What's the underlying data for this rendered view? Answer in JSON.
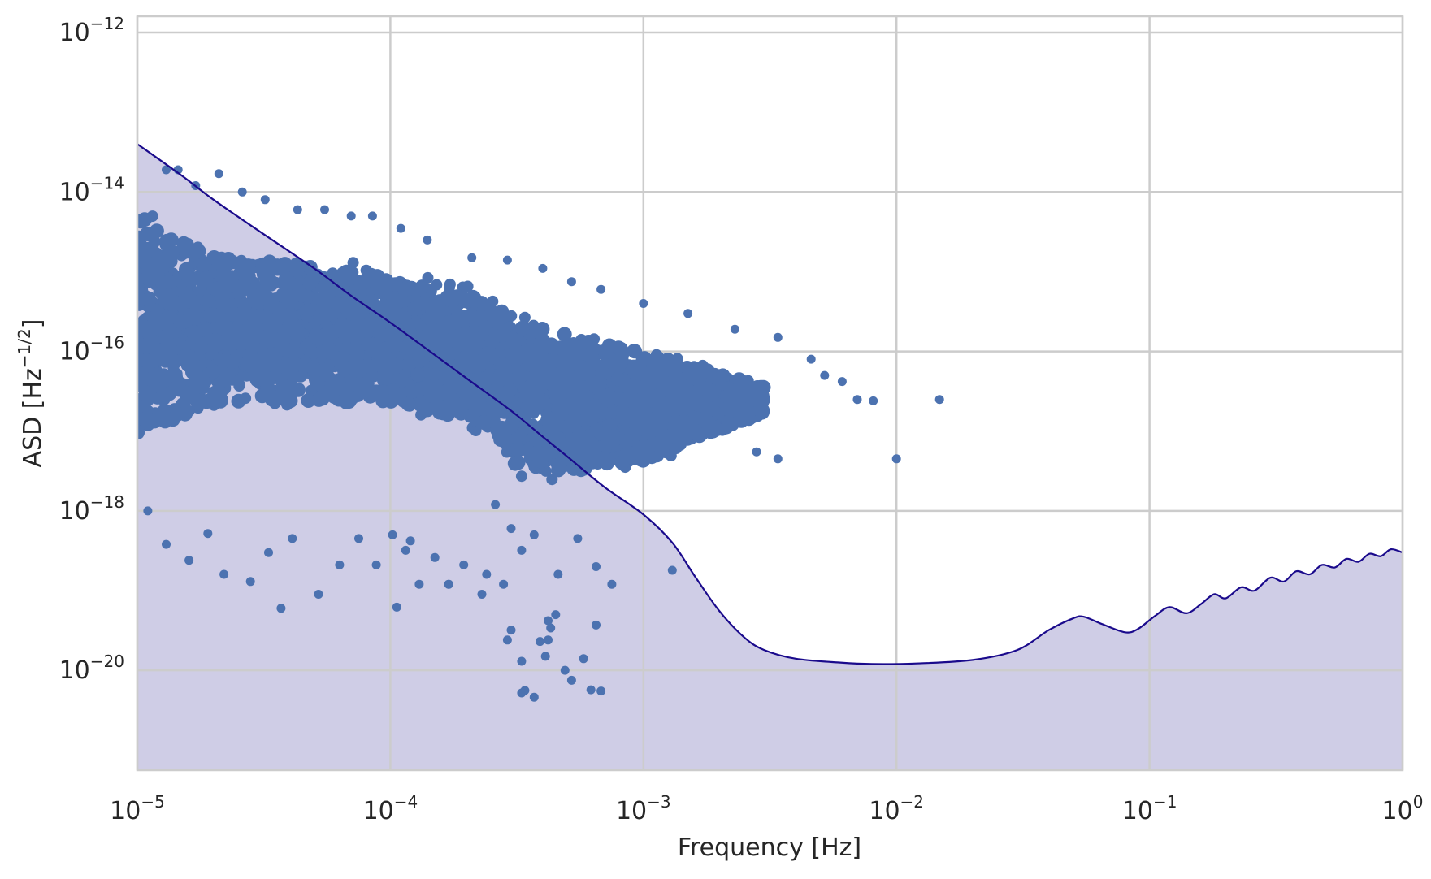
{
  "chart_data": {
    "type": "scatter",
    "title": "",
    "xlabel": "Frequency [Hz]",
    "ylabel": "ASD [Hz−1/2]",
    "ylabel_parts": {
      "prefix": "ASD [Hz",
      "exponent": "−1/2",
      "suffix": "]"
    },
    "xscale": "log",
    "yscale": "log",
    "xlim": [
      1e-05,
      1
    ],
    "ylim": [
      5.6e-22,
      1.6e-12
    ],
    "grid": true,
    "legend": "none",
    "x_ticks": [
      {
        "base": "10",
        "exp": "−5"
      },
      {
        "base": "10",
        "exp": "−4"
      },
      {
        "base": "10",
        "exp": "−3"
      },
      {
        "base": "10",
        "exp": "−2"
      },
      {
        "base": "10",
        "exp": "−1"
      },
      {
        "base": "10",
        "exp": "0"
      }
    ],
    "x_tick_values": [
      1e-05,
      0.0001,
      0.001,
      0.01,
      0.1,
      1
    ],
    "y_ticks": [
      {
        "base": "10",
        "exp": "−20"
      },
      {
        "base": "10",
        "exp": "−18"
      },
      {
        "base": "10",
        "exp": "−16"
      },
      {
        "base": "10",
        "exp": "−14"
      },
      {
        "base": "10",
        "exp": "−12"
      }
    ],
    "y_tick_values": [
      1e-20,
      1e-18,
      1e-16,
      1e-14,
      1e-12
    ],
    "colors": {
      "scatter": "#4c72b0",
      "curve": "#1a0a8c",
      "fill": "#cfcde6"
    },
    "series": [
      {
        "type": "line",
        "fill_below": true,
        "points": [
          [
            1e-05,
            4e-14
          ],
          [
            1.5e-05,
            1.6e-14
          ],
          [
            2e-05,
            8e-15
          ],
          [
            3e-05,
            3.3e-15
          ],
          [
            5e-05,
            1.1e-15
          ],
          [
            7e-05,
            5e-16
          ],
          [
            0.0001,
            2.3e-16
          ],
          [
            0.00015,
            9e-17
          ],
          [
            0.0002,
            4.6e-17
          ],
          [
            0.0003,
            1.8e-17
          ],
          [
            0.0004,
            8.5e-18
          ],
          [
            0.0005,
            4.8e-18
          ],
          [
            0.0007,
            2e-18
          ],
          [
            0.001,
            9e-19
          ],
          [
            0.0013,
            4e-19
          ],
          [
            0.0016,
            1.5e-19
          ],
          [
            0.002,
            5.5e-20
          ],
          [
            0.0025,
            2.6e-20
          ],
          [
            0.003,
            1.8e-20
          ],
          [
            0.004,
            1.4e-20
          ],
          [
            0.006,
            1.25e-20
          ],
          [
            0.008,
            1.2e-20
          ],
          [
            0.012,
            1.22e-20
          ],
          [
            0.02,
            1.35e-20
          ],
          [
            0.03,
            1.8e-20
          ],
          [
            0.04,
            3.2e-20
          ],
          [
            0.05,
            4.5e-20
          ],
          [
            0.055,
            4.7e-20
          ],
          [
            0.065,
            3.8e-20
          ],
          [
            0.08,
            3e-20
          ],
          [
            0.09,
            3.3e-20
          ],
          [
            0.105,
            4.8e-20
          ],
          [
            0.12,
            6.2e-20
          ],
          [
            0.14,
            5.2e-20
          ],
          [
            0.16,
            6.8e-20
          ],
          [
            0.18,
            9e-20
          ],
          [
            0.2,
            8e-20
          ],
          [
            0.23,
            1.1e-19
          ],
          [
            0.26,
            1e-19
          ],
          [
            0.3,
            1.45e-19
          ],
          [
            0.34,
            1.3e-19
          ],
          [
            0.38,
            1.75e-19
          ],
          [
            0.43,
            1.6e-19
          ],
          [
            0.48,
            2.1e-19
          ],
          [
            0.54,
            1.95e-19
          ],
          [
            0.6,
            2.5e-19
          ],
          [
            0.67,
            2.3e-19
          ],
          [
            0.74,
            2.9e-19
          ],
          [
            0.82,
            2.7e-19
          ],
          [
            0.9,
            3.3e-19
          ],
          [
            1.0,
            3e-19
          ]
        ]
      },
      {
        "type": "scatter",
        "band": [
          {
            "x": 1e-05,
            "low": 3e-18,
            "high": 1.5e-14
          },
          {
            "x": 2e-05,
            "low": 1.2e-17,
            "high": 3e-15
          },
          {
            "x": 5e-05,
            "low": 1.3e-17,
            "high": 2.2e-15
          },
          {
            "x": 0.0001,
            "low": 1.2e-17,
            "high": 1.5e-15
          },
          {
            "x": 0.0002,
            "low": 8e-18,
            "high": 9e-16
          },
          {
            "x": 0.00026,
            "low": 6e-18,
            "high": 7e-16
          },
          {
            "x": 0.0003,
            "low": 2e-18,
            "high": 5.5e-16
          },
          {
            "x": 0.0005,
            "low": 1.6e-18,
            "high": 3e-16
          },
          {
            "x": 0.001,
            "low": 2.6e-18,
            "high": 1.6e-16
          },
          {
            "x": 0.002,
            "low": 8e-18,
            "high": 7e-17
          },
          {
            "x": 0.003,
            "low": 1.5e-17,
            "high": 4e-17
          }
        ],
        "outliers": [
          [
            1.3e-05,
            1.9e-14
          ],
          [
            1.45e-05,
            1.9e-14
          ],
          [
            2.1e-05,
            1.7e-14
          ],
          [
            1.7e-05,
            1.2e-14
          ],
          [
            2.6e-05,
            1e-14
          ],
          [
            3.2e-05,
            8e-15
          ],
          [
            4.3e-05,
            6e-15
          ],
          [
            5.5e-05,
            6e-15
          ],
          [
            7e-05,
            5e-15
          ],
          [
            8.5e-05,
            5e-15
          ],
          [
            0.00011,
            3.5e-15
          ],
          [
            0.00014,
            2.5e-15
          ],
          [
            0.00021,
            1.5e-15
          ],
          [
            0.00029,
            1.4e-15
          ],
          [
            0.0004,
            1.1e-15
          ],
          [
            0.00052,
            7.5e-16
          ],
          [
            0.00068,
            6e-16
          ],
          [
            0.001,
            4e-16
          ],
          [
            0.0015,
            3e-16
          ],
          [
            0.0023,
            1.9e-16
          ],
          [
            0.0034,
            1.5e-16
          ],
          [
            0.0046,
            8e-17
          ],
          [
            0.0052,
            5e-17
          ],
          [
            0.007,
            2.5e-17
          ],
          [
            0.0061,
            4.2e-17
          ],
          [
            0.0081,
            2.4e-17
          ],
          [
            0.0148,
            2.5e-17
          ],
          [
            0.01,
            4.5e-18
          ],
          [
            0.0034,
            4.5e-18
          ],
          [
            0.0013,
            1.8e-19
          ],
          [
            0.0028,
            5.5e-18
          ],
          [
            1.1e-05,
            1e-18
          ],
          [
            1.3e-05,
            3.8e-19
          ],
          [
            1.6e-05,
            2.4e-19
          ],
          [
            1.9e-05,
            5.2e-19
          ],
          [
            2.2e-05,
            1.6e-19
          ],
          [
            2.8e-05,
            1.3e-19
          ],
          [
            3.3e-05,
            3e-19
          ],
          [
            3.7e-05,
            6e-20
          ],
          [
            4.1e-05,
            4.5e-19
          ],
          [
            5.2e-05,
            9e-20
          ],
          [
            6.3e-05,
            2.1e-19
          ],
          [
            7.5e-05,
            4.5e-19
          ],
          [
            8.8e-05,
            2.1e-19
          ],
          [
            0.000102,
            5e-19
          ],
          [
            0.000115,
            3.2e-19
          ],
          [
            0.00013,
            1.2e-19
          ],
          [
            0.00015,
            2.6e-19
          ],
          [
            0.00017,
            1.2e-19
          ],
          [
            0.000195,
            2.1e-19
          ],
          [
            0.00023,
            9e-20
          ],
          [
            0.000106,
            6.2e-20
          ],
          [
            0.00024,
            1.6e-19
          ],
          [
            0.00026,
            1.2e-18
          ],
          [
            0.00028,
            1.2e-19
          ],
          [
            0.0003,
            6e-19
          ],
          [
            0.00033,
            3.2e-19
          ],
          [
            0.00037,
            5e-19
          ],
          [
            0.00042,
            4.2e-20
          ],
          [
            0.00046,
            1.6e-19
          ],
          [
            0.00055,
            4.5e-19
          ],
          [
            0.00065,
            2e-19
          ],
          [
            0.00075,
            1.2e-19
          ],
          [
            0.0003,
            3.2e-20
          ],
          [
            0.00033,
            1.3e-20
          ],
          [
            0.00034,
            5.6e-21
          ],
          [
            0.00037,
            4.6e-21
          ],
          [
            0.00039,
            2.3e-20
          ],
          [
            0.00041,
            1.5e-20
          ],
          [
            0.00045,
            5e-20
          ],
          [
            0.00042,
            2.4e-20
          ],
          [
            0.00049,
            1e-20
          ],
          [
            0.00052,
            7.5e-21
          ],
          [
            0.00058,
            1.4e-20
          ],
          [
            0.00062,
            5.7e-21
          ],
          [
            0.00068,
            5.5e-21
          ],
          [
            0.00065,
            3.7e-20
          ],
          [
            0.00043,
            3.4e-20
          ],
          [
            0.00029,
            2.4e-20
          ],
          [
            0.00033,
            5.2e-21
          ],
          [
            0.00017,
            1.2e-19
          ],
          [
            0.00012,
            4.2e-19
          ]
        ]
      }
    ]
  }
}
